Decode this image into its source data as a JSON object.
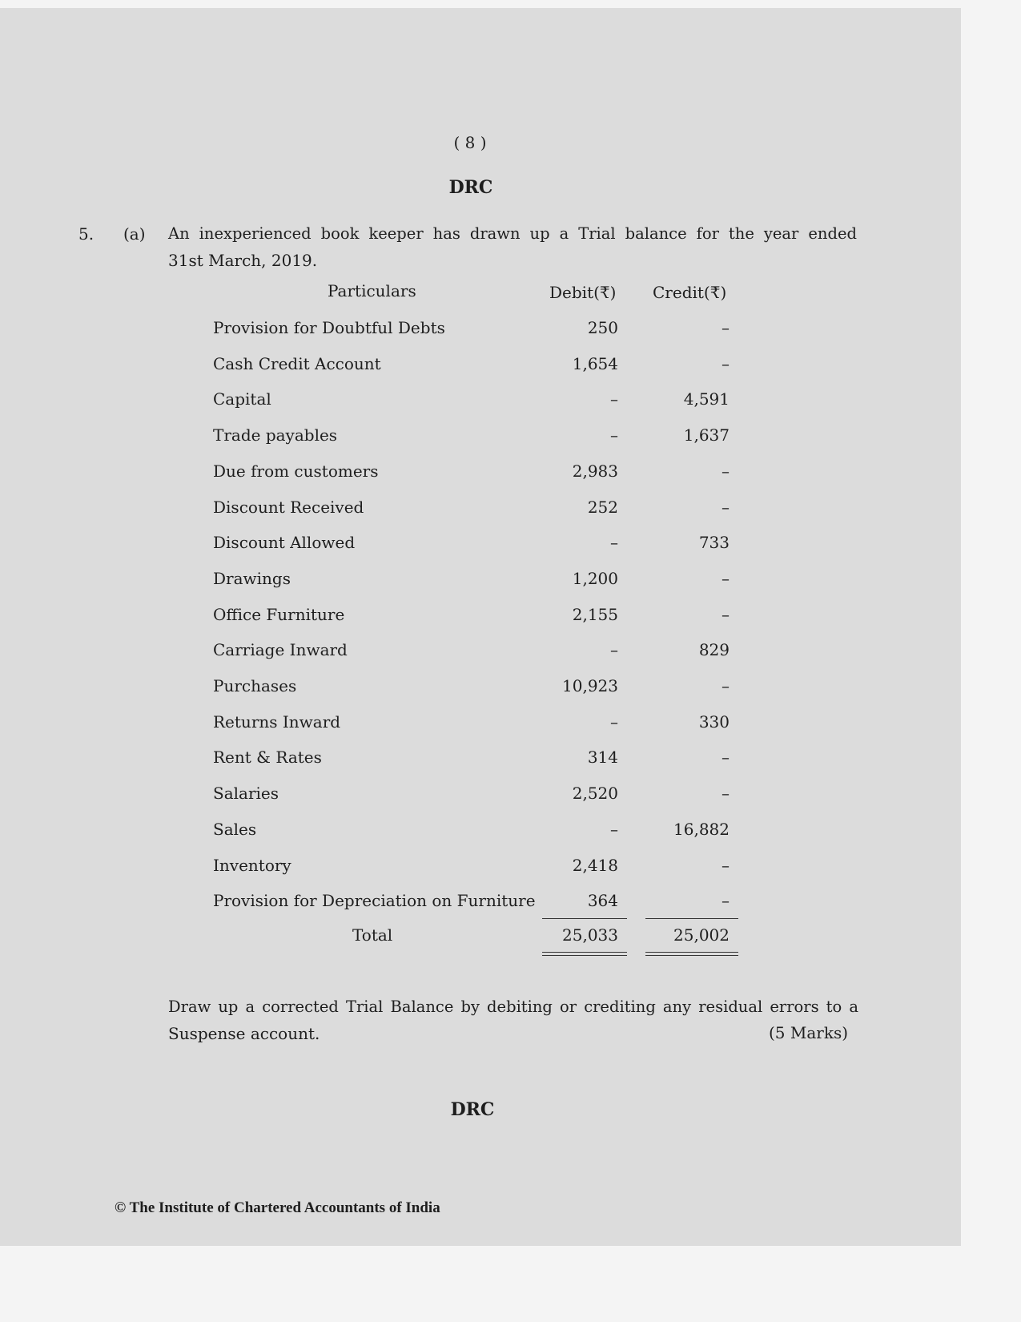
{
  "page_number": "( 8 )",
  "header": "DRC",
  "question": {
    "number": "5.",
    "part": "(a)",
    "intro_line1": "An inexperienced book keeper has drawn up a Trial balance for the year ended",
    "intro_line2": "31st March, 2019."
  },
  "table": {
    "headers": {
      "particulars": "Particulars",
      "debit": "Debit(₹)",
      "credit": "Credit(₹)"
    },
    "rows": [
      {
        "particulars": "Provision for Doubtful Debts",
        "debit": "250",
        "credit": "–"
      },
      {
        "particulars": "Cash Credit Account",
        "debit": "1,654",
        "credit": "–"
      },
      {
        "particulars": "Capital",
        "debit": "–",
        "credit": "4,591"
      },
      {
        "particulars": "Trade payables",
        "debit": "–",
        "credit": "1,637"
      },
      {
        "particulars": "Due from customers",
        "debit": "2,983",
        "credit": "–"
      },
      {
        "particulars": "Discount Received",
        "debit": "252",
        "credit": "–"
      },
      {
        "particulars": "Discount Allowed",
        "debit": "–",
        "credit": "733"
      },
      {
        "particulars": "Drawings",
        "debit": "1,200",
        "credit": "–"
      },
      {
        "particulars": "Office Furniture",
        "debit": "2,155",
        "credit": "–"
      },
      {
        "particulars": "Carriage Inward",
        "debit": "–",
        "credit": "829"
      },
      {
        "particulars": "Purchases",
        "debit": "10,923",
        "credit": "–"
      },
      {
        "particulars": "Returns Inward",
        "debit": "–",
        "credit": "330"
      },
      {
        "particulars": "Rent & Rates",
        "debit": "314",
        "credit": "–"
      },
      {
        "particulars": "Salaries",
        "debit": "2,520",
        "credit": "–"
      },
      {
        "particulars": "Sales",
        "debit": "–",
        "credit": "16,882"
      },
      {
        "particulars": "Inventory",
        "debit": "2,418",
        "credit": "–"
      },
      {
        "particulars": "Provision for Depreciation on Furniture",
        "debit": "364",
        "credit": "–"
      }
    ],
    "total": {
      "label": "Total",
      "debit": "25,033",
      "credit": "25,002"
    }
  },
  "instruction_line1": "Draw up a corrected Trial Balance by debiting or crediting any residual errors to a",
  "instruction_line2": "Suspense account.",
  "marks": "(5 Marks)",
  "footer_code": "DRC",
  "copyright": "© The Institute of Chartered Accountants of India"
}
